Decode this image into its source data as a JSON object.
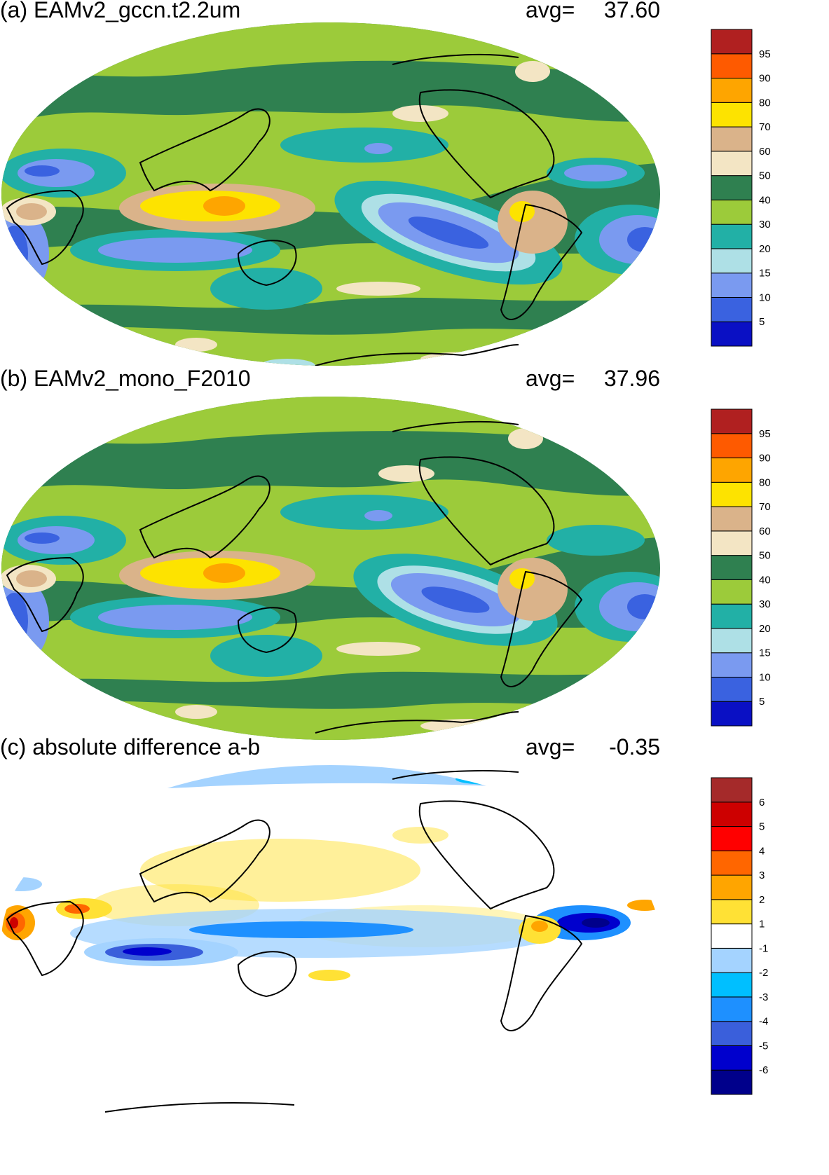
{
  "panels": [
    {
      "id": "a",
      "title": "(a) EAMv2_gccn.t2.2um",
      "avg_label": "avg=",
      "avg_value": "37.60",
      "colorbar": {
        "colors": [
          "#0a10c4",
          "#3a62e0",
          "#7a9af0",
          "#aee0e6",
          "#22b0a6",
          "#9ccb3a",
          "#2f8050",
          "#f3e5c4",
          "#dab38a",
          "#fde300",
          "#fea500",
          "#fe5a00",
          "#b02020"
        ],
        "labels": [
          "5",
          "10",
          "15",
          "20",
          "30",
          "40",
          "50",
          "60",
          "70",
          "80",
          "90",
          "95"
        ]
      },
      "background": "#2f8050"
    },
    {
      "id": "b",
      "title": "(b) EAMv2_mono_F2010",
      "avg_label": "avg=",
      "avg_value": "37.96",
      "colorbar": {
        "colors": [
          "#0a10c4",
          "#3a62e0",
          "#7a9af0",
          "#aee0e6",
          "#22b0a6",
          "#9ccb3a",
          "#2f8050",
          "#f3e5c4",
          "#dab38a",
          "#fde300",
          "#fea500",
          "#fe5a00",
          "#b02020"
        ],
        "labels": [
          "5",
          "10",
          "15",
          "20",
          "30",
          "40",
          "50",
          "60",
          "70",
          "80",
          "90",
          "95"
        ]
      },
      "background": "#2f8050"
    },
    {
      "id": "c",
      "title": "(c) absolute difference a-b",
      "avg_label": "avg=",
      "avg_value": "-0.35",
      "colorbar": {
        "colors": [
          "#00008b",
          "#0000cd",
          "#3a5fdb",
          "#1e90ff",
          "#00bfff",
          "#a4d3ff",
          "#ffffff",
          "#ffe135",
          "#ffa500",
          "#ff6600",
          "#ff0000",
          "#cd0000",
          "#a52a2a"
        ],
        "labels": [
          "-6",
          "-5",
          "-4",
          "-3",
          "-2",
          "-1",
          "1",
          "2",
          "3",
          "4",
          "5",
          "6"
        ]
      },
      "background": "#ffffff"
    }
  ],
  "chart_data": [
    {
      "type": "heatmap",
      "title": "(a) EAMv2_gccn.t2.2um",
      "annotation": "avg= 37.60",
      "levels": [
        5,
        10,
        15,
        20,
        30,
        40,
        50,
        60,
        70,
        80,
        90,
        95
      ],
      "global_average": 37.6
    },
    {
      "type": "heatmap",
      "title": "(b) EAMv2_mono_F2010",
      "annotation": "avg= 37.96",
      "levels": [
        5,
        10,
        15,
        20,
        30,
        40,
        50,
        60,
        70,
        80,
        90,
        95
      ],
      "global_average": 37.96
    },
    {
      "type": "heatmap",
      "title": "(c) absolute difference a-b",
      "annotation": "avg= -0.35",
      "levels": [
        -6,
        -5,
        -4,
        -3,
        -2,
        -1,
        1,
        2,
        3,
        4,
        5,
        6
      ],
      "global_average": -0.35
    }
  ]
}
